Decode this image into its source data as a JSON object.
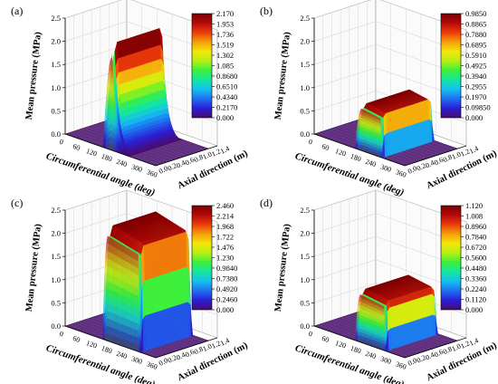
{
  "chart_data": [
    {
      "type": "surface3d",
      "panel_label": "(a)",
      "zlabel": "Mean pressure (MPa)",
      "xlabel": "Circumferential angle (deg)",
      "ylabel": "Axial direction (m)",
      "z_ticks": [
        "0.0",
        "0.5",
        "1.0",
        "1.5",
        "2.0",
        "2.5"
      ],
      "x_ticks": [
        "0",
        "60",
        "120",
        "180",
        "240",
        "300",
        "360"
      ],
      "y_ticks": [
        "0.0",
        "0.2",
        "0.4",
        "0.6",
        "0.8",
        "1.0",
        "1.2",
        "1.4"
      ],
      "colorbar_ticks": [
        "2.170",
        "1.953",
        "1.736",
        "1.519",
        "1.302",
        "1.085",
        "0.8680",
        "0.6510",
        "0.4340",
        "0.2170",
        "0.000"
      ],
      "zlim": [
        0,
        2.5
      ],
      "xlim": [
        0,
        360
      ],
      "ylim": [
        0,
        1.4
      ],
      "pressure_peak": 2.17,
      "surface": {
        "angle_start": 150,
        "angle_peak": 185,
        "angle_end": 255,
        "shape": "peaked",
        "axial_start": 0.0,
        "axial_end": 1.2
      }
    },
    {
      "type": "surface3d",
      "panel_label": "(b)",
      "zlabel": "Mean pressure (MPa)",
      "xlabel": "Circumferential angle (deg)",
      "ylabel": "Axial direction (m)",
      "z_ticks": [
        "0.0",
        "0.5",
        "1.0",
        "1.5",
        "2.0",
        "2.5"
      ],
      "x_ticks": [
        "0",
        "60",
        "120",
        "180",
        "240",
        "300",
        "360"
      ],
      "y_ticks": [
        "0.0",
        "0.2",
        "0.4",
        "0.6",
        "0.8",
        "1.0",
        "1.2",
        "1.4"
      ],
      "colorbar_ticks": [
        "0.9850",
        "0.8865",
        "0.7880",
        "0.6895",
        "0.5910",
        "0.4925",
        "0.3940",
        "0.2955",
        "0.1970",
        "0.09850",
        "0.000"
      ],
      "zlim": [
        0,
        2.5
      ],
      "xlim": [
        0,
        360
      ],
      "ylim": [
        0,
        1.4
      ],
      "pressure_peak": 0.985,
      "surface": {
        "angle_start": 165,
        "angle_peak": 190,
        "angle_end": 270,
        "shape": "plateau",
        "axial_start": 0.0,
        "axial_end": 1.2
      }
    },
    {
      "type": "surface3d",
      "panel_label": "(c)",
      "zlabel": "Mean pressure (MPa)",
      "xlabel": "Circumferential angle (deg)",
      "ylabel": "Axial direction (m)",
      "z_ticks": [
        "0.0",
        "0.5",
        "1.0",
        "1.5",
        "2.0",
        "2.5"
      ],
      "x_ticks": [
        "0",
        "60",
        "120",
        "180",
        "240",
        "300",
        "360"
      ],
      "y_ticks": [
        "0.0",
        "0.2",
        "0.4",
        "0.6",
        "0.8",
        "1.0",
        "1.2",
        "1.4"
      ],
      "colorbar_ticks": [
        "2.460",
        "2.214",
        "1.968",
        "1.722",
        "1.476",
        "1.230",
        "0.9840",
        "0.7380",
        "0.4920",
        "0.2460",
        "0.000"
      ],
      "zlim": [
        0,
        2.5
      ],
      "xlim": [
        0,
        360
      ],
      "ylim": [
        0,
        1.4
      ],
      "pressure_peak": 2.46,
      "surface": {
        "angle_start": 150,
        "angle_peak": 170,
        "angle_end": 300,
        "shape": "plateau",
        "axial_start": 0.0,
        "axial_end": 1.2
      }
    },
    {
      "type": "surface3d",
      "panel_label": "(d)",
      "zlabel": "Mean pressure (MPa)",
      "xlabel": "Circumferential angle (deg)",
      "ylabel": "Axial direction (m)",
      "z_ticks": [
        "0.0",
        "0.5",
        "1.0",
        "1.5",
        "2.0",
        "2.5"
      ],
      "x_ticks": [
        "0",
        "60",
        "120",
        "180",
        "240",
        "300",
        "360"
      ],
      "y_ticks": [
        "0.0",
        "0.2",
        "0.4",
        "0.6",
        "0.8",
        "1.0",
        "1.2",
        "1.4"
      ],
      "colorbar_ticks": [
        "1.120",
        "1.008",
        "0.8960",
        "0.7840",
        "0.6720",
        "0.5600",
        "0.4480",
        "0.3360",
        "0.2240",
        "0.1120",
        "0.000"
      ],
      "zlim": [
        0,
        2.5
      ],
      "xlim": [
        0,
        360
      ],
      "ylim": [
        0,
        1.4
      ],
      "pressure_peak": 1.12,
      "surface": {
        "angle_start": 165,
        "angle_peak": 185,
        "angle_end": 285,
        "shape": "plateau",
        "axial_start": 0.0,
        "axial_end": 1.2
      }
    }
  ],
  "colormap": [
    "#4b0a6e",
    "#2a1fd6",
    "#1e6ff0",
    "#14c0f0",
    "#14e6a0",
    "#3cf03c",
    "#b4f014",
    "#f5e60a",
    "#f5a00a",
    "#eb3c0a",
    "#b40a0a",
    "#7a0000"
  ],
  "floor_color": "#5a2a7a"
}
